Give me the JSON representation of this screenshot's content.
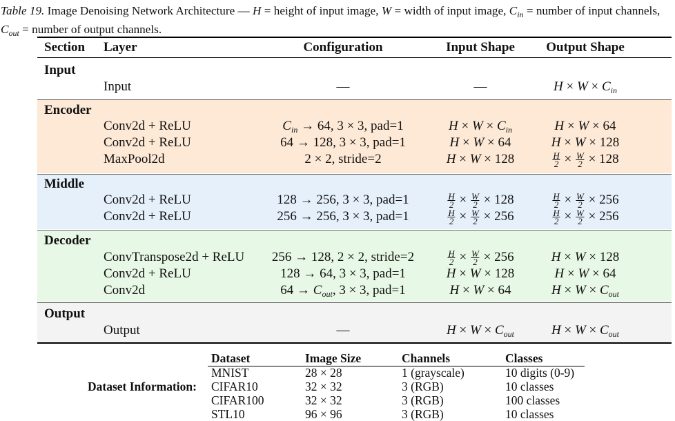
{
  "caption": {
    "table_number": "Table 19.",
    "text_html": "Image Denoising Network Architecture — <span class=\"math\">H</span> = height of input image, <span class=\"math\">W</span> = width of input image, <span class=\"math\">C<span class=\"sub\">in</span></span> = number of input channels, <span class=\"math\">C<span class=\"sub\">out</span></span> = number of output channels."
  },
  "headers": {
    "section": "Section",
    "layer": "Layer",
    "configuration": "Configuration",
    "input_shape": "Input Shape",
    "output_shape": "Output Shape"
  },
  "sections": [
    {
      "name": "Input",
      "color": "#ffffff",
      "rows": [
        {
          "layer": "Input",
          "config": "—",
          "in": "—",
          "out": "<i>H</i> × <i>W</i> × <i>C</i><span class=\"sub\">in</span>"
        }
      ]
    },
    {
      "name": "Encoder",
      "color": "#fde9d6",
      "rows": [
        {
          "layer": "Conv2d + ReLU",
          "config": "<i>C</i><span class=\"sub\">in</span> → 64, 3 × 3, pad=1",
          "in": "<i>H</i> × <i>W</i> × <i>C</i><span class=\"sub\">in</span>",
          "out": "<i>H</i> × <i>W</i> × 64"
        },
        {
          "layer": "Conv2d + ReLU",
          "config": "64 → 128, 3 × 3, pad=1",
          "in": "<i>H</i> × <i>W</i> × 64",
          "out": "<i>H</i> × <i>W</i> × 128"
        },
        {
          "layer": "MaxPool2d",
          "config": "2 × 2, stride=2",
          "in": "<i>H</i> × <i>W</i> × 128",
          "out": "<span class=\"frac\"><span class=\"num\">H</span><span class=\"den\">2</span></span> × <span class=\"frac\"><span class=\"num\">W</span><span class=\"den\">2</span></span> × 128"
        }
      ]
    },
    {
      "name": "Middle",
      "color": "#e6f0fb",
      "rows": [
        {
          "layer": "Conv2d + ReLU",
          "config": "128 → 256, 3 × 3, pad=1",
          "in": "<span class=\"frac\"><span class=\"num\">H</span><span class=\"den\">2</span></span> × <span class=\"frac\"><span class=\"num\">W</span><span class=\"den\">2</span></span> × 128",
          "out": "<span class=\"frac\"><span class=\"num\">H</span><span class=\"den\">2</span></span> × <span class=\"frac\"><span class=\"num\">W</span><span class=\"den\">2</span></span> × 256"
        },
        {
          "layer": "Conv2d + ReLU",
          "config": "256 → 256, 3 × 3, pad=1",
          "in": "<span class=\"frac\"><span class=\"num\">H</span><span class=\"den\">2</span></span> × <span class=\"frac\"><span class=\"num\">W</span><span class=\"den\">2</span></span> × 256",
          "out": "<span class=\"frac\"><span class=\"num\">H</span><span class=\"den\">2</span></span> × <span class=\"frac\"><span class=\"num\">W</span><span class=\"den\">2</span></span> × 256"
        }
      ]
    },
    {
      "name": "Decoder",
      "color": "#e8f8e6",
      "rows": [
        {
          "layer": "ConvTranspose2d + ReLU",
          "config": "256 → 128, 2 × 2, stride=2",
          "in": "<span class=\"frac\"><span class=\"num\">H</span><span class=\"den\">2</span></span> × <span class=\"frac\"><span class=\"num\">W</span><span class=\"den\">2</span></span> × 256",
          "out": "<i>H</i> × <i>W</i> × 128"
        },
        {
          "layer": "Conv2d + ReLU",
          "config": "128 → 64, 3 × 3, pad=1",
          "in": "<i>H</i> × <i>W</i> × 128",
          "out": "<i>H</i> × <i>W</i> × 64"
        },
        {
          "layer": "Conv2d",
          "config": "64 → <i>C</i><span class=\"sub\">out</span>, 3 × 3, pad=1",
          "in": "<i>H</i> × <i>W</i> × 64",
          "out": "<i>H</i> × <i>W</i> × <i>C</i><span class=\"sub\">out</span>"
        }
      ]
    },
    {
      "name": "Output",
      "color": "#f3f3f3",
      "rows": [
        {
          "layer": "Output",
          "config": "—",
          "in": "<i>H</i> × <i>W</i> × <i>C</i><span class=\"sub\">out</span>",
          "out": "<i>H</i> × <i>W</i> × <i>C</i><span class=\"sub\">out</span>"
        }
      ]
    }
  ],
  "dataset_info": {
    "label": "Dataset Information:",
    "headers": [
      "Dataset",
      "Image Size",
      "Channels",
      "Classes"
    ],
    "rows": [
      [
        "MNIST",
        "28 × 28",
        "1 (grayscale)",
        "10 digits (0-9)"
      ],
      [
        "CIFAR10",
        "32 × 32",
        "3 (RGB)",
        "10 classes"
      ],
      [
        "CIFAR100",
        "32 × 32",
        "3 (RGB)",
        "100 classes"
      ],
      [
        "STL10",
        "96 × 96",
        "3 (RGB)",
        "10 classes"
      ]
    ]
  }
}
